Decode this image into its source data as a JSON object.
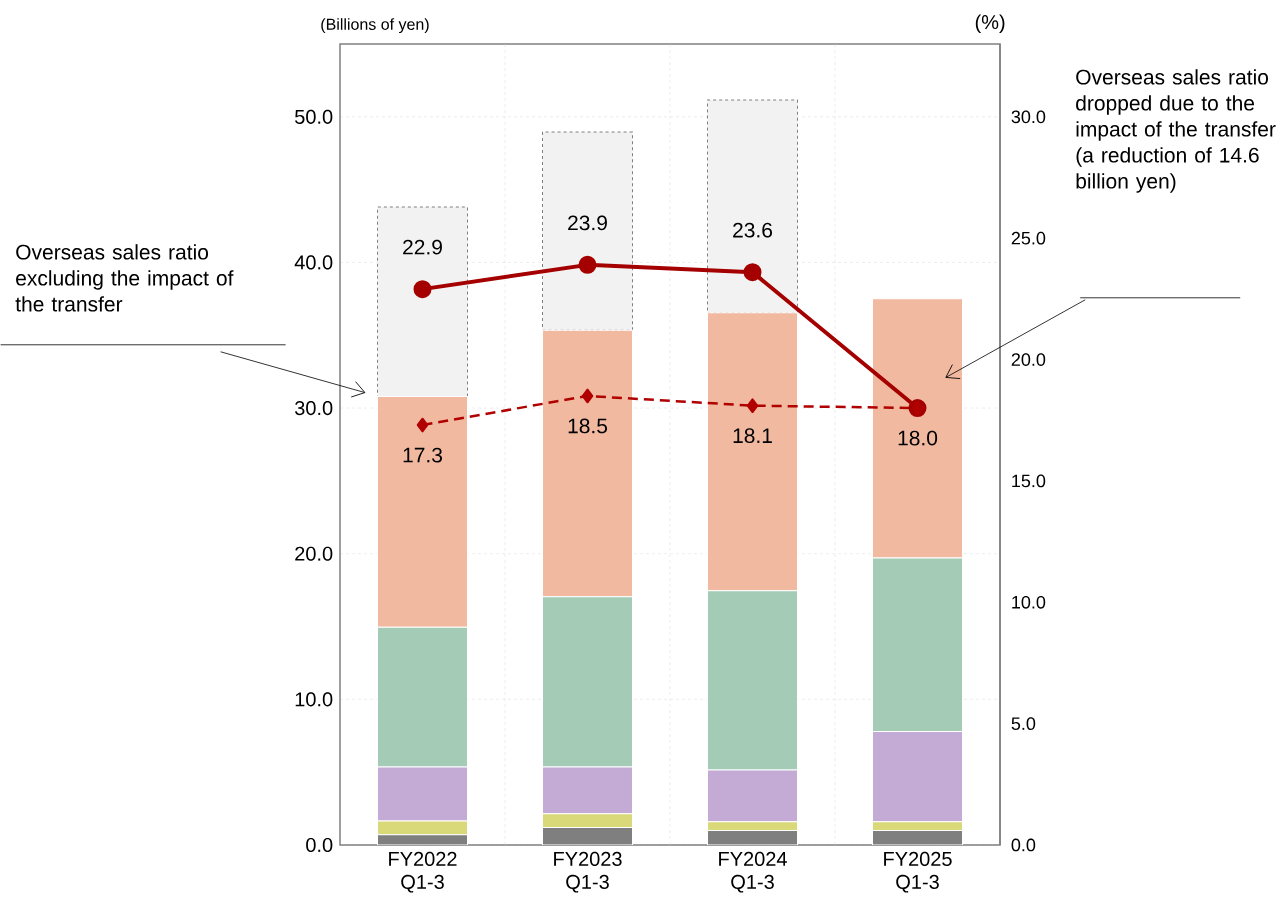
{
  "chart_data": {
    "type": "bar",
    "stacked": true,
    "grid": true,
    "ylabel": "(Billions of yen)",
    "y2label": "(%)",
    "categories": [
      "FY2022 Q1-3",
      "FY2023 Q1-3",
      "FY2024 Q1-3",
      "FY2025 Q1-3"
    ],
    "ylim": [
      0,
      55
    ],
    "yticks": [
      {
        "value": 0,
        "label": "0.0"
      },
      {
        "value": 10,
        "label": "10.0"
      },
      {
        "value": 20,
        "label": "20.0"
      },
      {
        "value": 30,
        "label": "30.0"
      },
      {
        "value": 40,
        "label": "40.0"
      },
      {
        "value": 50,
        "label": "50.0"
      }
    ],
    "y2lim": [
      0,
      33
    ],
    "y2ticks": [
      {
        "value": 0,
        "label": "0.0"
      },
      {
        "value": 5,
        "label": "5.0"
      },
      {
        "value": 10,
        "label": "10.0"
      },
      {
        "value": 15,
        "label": "15.0"
      },
      {
        "value": 20,
        "label": "20.0"
      },
      {
        "value": 25,
        "label": "25.0"
      },
      {
        "value": 30,
        "label": "30.0"
      }
    ],
    "series": [
      {
        "color": "#7f7f7f",
        "values": [
          0.7,
          1.2,
          1.0,
          1.0
        ]
      },
      {
        "color": "#d9d97a",
        "values": [
          0.95,
          0.95,
          0.6,
          0.6
        ]
      },
      {
        "color": "#c3abd6",
        "values": [
          3.7,
          3.2,
          3.55,
          6.2
        ]
      },
      {
        "color": "#a3cbb5",
        "values": [
          9.6,
          11.7,
          12.3,
          11.9
        ]
      },
      {
        "color": "#f2b9a1",
        "values": [
          15.85,
          18.3,
          19.1,
          17.8
        ]
      },
      {
        "color": "#f2f2f2",
        "line_style": "dashed",
        "values": [
          13.0,
          13.6,
          14.6,
          null
        ]
      },
      {
        "type": "line",
        "axis": "y2",
        "color": "#a50000",
        "marker": "circle",
        "line_style": "solid",
        "values": [
          22.9,
          23.9,
          23.6,
          18.0
        ],
        "value_labels": [
          "22.9",
          "23.9",
          "23.6",
          null
        ]
      },
      {
        "type": "line",
        "axis": "y2",
        "color": "#b00000",
        "marker": "diamond",
        "line_style": "dashed",
        "values": [
          17.3,
          18.5,
          18.1,
          18.0
        ],
        "value_labels": [
          "17.3",
          "18.5",
          "18.1",
          "18.0"
        ]
      }
    ],
    "annotations": [
      "Overseas sales ratio excluding the impact of the transfer",
      "Overseas sales ratio dropped due to the impact of the transfer (a reduction of 14.6 billion yen)"
    ]
  }
}
